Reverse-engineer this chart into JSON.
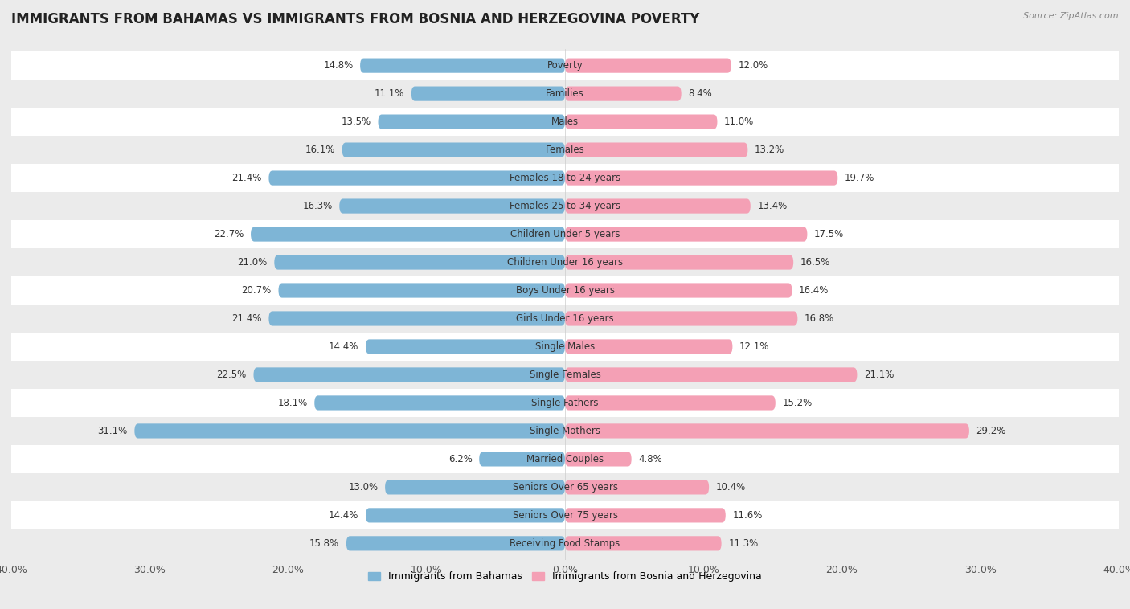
{
  "title": "IMMIGRANTS FROM BAHAMAS VS IMMIGRANTS FROM BOSNIA AND HERZEGOVINA POVERTY",
  "source": "Source: ZipAtlas.com",
  "categories": [
    "Poverty",
    "Families",
    "Males",
    "Females",
    "Females 18 to 24 years",
    "Females 25 to 34 years",
    "Children Under 5 years",
    "Children Under 16 years",
    "Boys Under 16 years",
    "Girls Under 16 years",
    "Single Males",
    "Single Females",
    "Single Fathers",
    "Single Mothers",
    "Married Couples",
    "Seniors Over 65 years",
    "Seniors Over 75 years",
    "Receiving Food Stamps"
  ],
  "bahamas_values": [
    14.8,
    11.1,
    13.5,
    16.1,
    21.4,
    16.3,
    22.7,
    21.0,
    20.7,
    21.4,
    14.4,
    22.5,
    18.1,
    31.1,
    6.2,
    13.0,
    14.4,
    15.8
  ],
  "bosnia_values": [
    12.0,
    8.4,
    11.0,
    13.2,
    19.7,
    13.4,
    17.5,
    16.5,
    16.4,
    16.8,
    12.1,
    21.1,
    15.2,
    29.2,
    4.8,
    10.4,
    11.6,
    11.3
  ],
  "bahamas_color": "#7eb5d6",
  "bosnia_color": "#f4a0b5",
  "bahamas_label": "Immigrants from Bahamas",
  "bosnia_label": "Immigrants from Bosnia and Herzegovina",
  "xlim": 40.0,
  "row_color_even": "#ffffff",
  "row_color_odd": "#ebebeb",
  "background_color": "#ebebeb",
  "title_fontsize": 12,
  "label_fontsize": 8.5,
  "value_fontsize": 8.5,
  "legend_fontsize": 9,
  "axis_label_fontsize": 9,
  "bar_height": 0.52
}
